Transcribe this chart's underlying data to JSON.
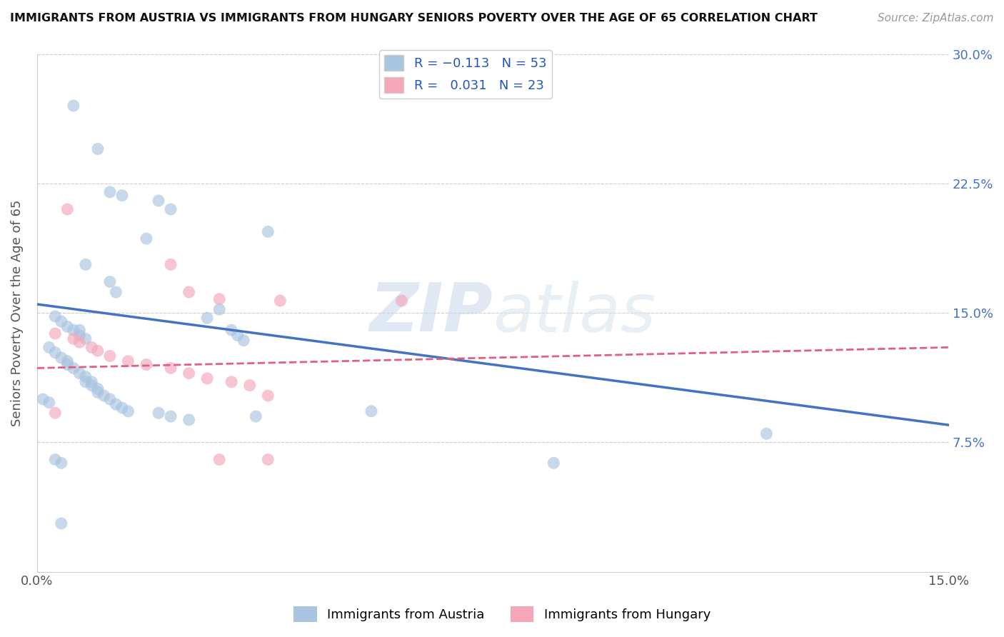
{
  "title": "IMMIGRANTS FROM AUSTRIA VS IMMIGRANTS FROM HUNGARY SENIORS POVERTY OVER THE AGE OF 65 CORRELATION CHART",
  "source": "Source: ZipAtlas.com",
  "ylabel": "Seniors Poverty Over the Age of 65",
  "xlim": [
    0.0,
    0.15
  ],
  "ylim": [
    0.0,
    0.3
  ],
  "xticks": [
    0.0,
    0.05,
    0.1,
    0.15
  ],
  "xtick_labels": [
    "0.0%",
    "",
    "",
    "15.0%"
  ],
  "ytick_labels_right": [
    "7.5%",
    "15.0%",
    "22.5%",
    "30.0%"
  ],
  "yticks_right": [
    0.075,
    0.15,
    0.225,
    0.3
  ],
  "austria_color": "#a8c4e0",
  "hungary_color": "#f4a7b9",
  "austria_line_color": "#4472c4",
  "hungary_line_color": "#e06080",
  "austria_R": -0.113,
  "austria_N": 53,
  "hungary_R": 0.031,
  "hungary_N": 23,
  "watermark_zip": "ZIP",
  "watermark_atlas": "atlas",
  "austria_scatter": [
    [
      0.006,
      0.27
    ],
    [
      0.01,
      0.245
    ],
    [
      0.012,
      0.22
    ],
    [
      0.014,
      0.218
    ],
    [
      0.02,
      0.215
    ],
    [
      0.022,
      0.21
    ],
    [
      0.018,
      0.193
    ],
    [
      0.038,
      0.197
    ],
    [
      0.008,
      0.178
    ],
    [
      0.012,
      0.168
    ],
    [
      0.013,
      0.162
    ],
    [
      0.003,
      0.148
    ],
    [
      0.004,
      0.145
    ],
    [
      0.005,
      0.142
    ],
    [
      0.006,
      0.14
    ],
    [
      0.007,
      0.14
    ],
    [
      0.007,
      0.137
    ],
    [
      0.008,
      0.135
    ],
    [
      0.028,
      0.147
    ],
    [
      0.03,
      0.152
    ],
    [
      0.032,
      0.14
    ],
    [
      0.033,
      0.137
    ],
    [
      0.034,
      0.134
    ],
    [
      0.002,
      0.13
    ],
    [
      0.003,
      0.127
    ],
    [
      0.004,
      0.124
    ],
    [
      0.005,
      0.122
    ],
    [
      0.005,
      0.12
    ],
    [
      0.006,
      0.118
    ],
    [
      0.007,
      0.115
    ],
    [
      0.008,
      0.113
    ],
    [
      0.008,
      0.11
    ],
    [
      0.009,
      0.11
    ],
    [
      0.009,
      0.108
    ],
    [
      0.01,
      0.106
    ],
    [
      0.01,
      0.104
    ],
    [
      0.011,
      0.102
    ],
    [
      0.012,
      0.1
    ],
    [
      0.013,
      0.097
    ],
    [
      0.014,
      0.095
    ],
    [
      0.015,
      0.093
    ],
    [
      0.02,
      0.092
    ],
    [
      0.022,
      0.09
    ],
    [
      0.025,
      0.088
    ],
    [
      0.036,
      0.09
    ],
    [
      0.055,
      0.093
    ],
    [
      0.003,
      0.065
    ],
    [
      0.004,
      0.063
    ],
    [
      0.085,
      0.063
    ],
    [
      0.004,
      0.028
    ],
    [
      0.001,
      0.1
    ],
    [
      0.002,
      0.098
    ],
    [
      0.12,
      0.08
    ]
  ],
  "hungary_scatter": [
    [
      0.005,
      0.21
    ],
    [
      0.022,
      0.178
    ],
    [
      0.025,
      0.162
    ],
    [
      0.03,
      0.158
    ],
    [
      0.003,
      0.138
    ],
    [
      0.006,
      0.135
    ],
    [
      0.007,
      0.133
    ],
    [
      0.009,
      0.13
    ],
    [
      0.01,
      0.128
    ],
    [
      0.012,
      0.125
    ],
    [
      0.015,
      0.122
    ],
    [
      0.018,
      0.12
    ],
    [
      0.022,
      0.118
    ],
    [
      0.025,
      0.115
    ],
    [
      0.028,
      0.112
    ],
    [
      0.032,
      0.11
    ],
    [
      0.035,
      0.108
    ],
    [
      0.038,
      0.102
    ],
    [
      0.04,
      0.157
    ],
    [
      0.06,
      0.157
    ],
    [
      0.003,
      0.092
    ],
    [
      0.03,
      0.065
    ],
    [
      0.038,
      0.065
    ]
  ],
  "austria_line": [
    [
      0.0,
      0.155
    ],
    [
      0.15,
      0.085
    ]
  ],
  "hungary_line": [
    [
      0.0,
      0.118
    ],
    [
      0.15,
      0.13
    ]
  ]
}
